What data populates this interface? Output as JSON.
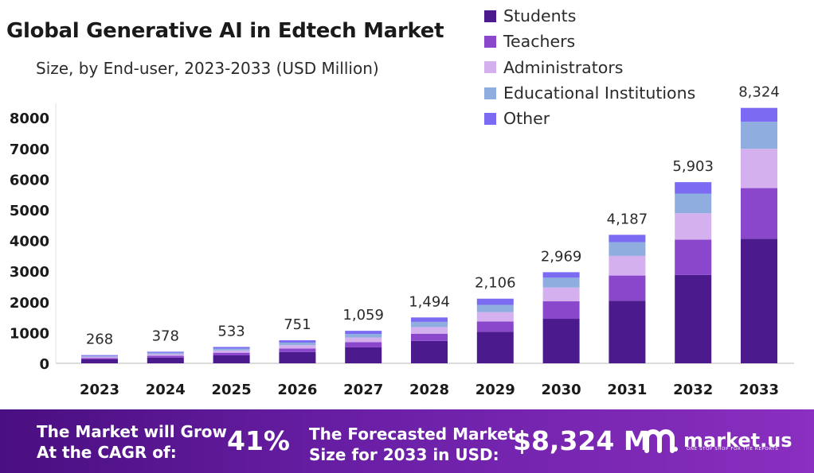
{
  "chart_data": {
    "type": "bar",
    "stacked": true,
    "title": "Global Generative AI in Edtech Market",
    "subtitle": "Size, by End-user, 2023-2033 (USD Million)",
    "categories": [
      "2023",
      "2024",
      "2025",
      "2026",
      "2027",
      "2028",
      "2029",
      "2030",
      "2031",
      "2032",
      "2033"
    ],
    "totals": [
      268,
      378,
      533,
      751,
      1059,
      1494,
      2106,
      2969,
      4187,
      5903,
      8324
    ],
    "total_labels": [
      "268",
      "378",
      "533",
      "751",
      "1,059",
      "1,494",
      "2,106",
      "2,969",
      "4,187",
      "5,903",
      "8,324"
    ],
    "series": [
      {
        "name": "Students",
        "color": "#4b1a8c",
        "values": [
          130,
          185,
          260,
          365,
          520,
          730,
          1030,
          1450,
          2040,
          2880,
          4060
        ]
      },
      {
        "name": "Teachers",
        "color": "#8a47cc",
        "values": [
          42,
          60,
          85,
          120,
          168,
          235,
          330,
          570,
          820,
          1150,
          1650
        ]
      },
      {
        "name": "Administrators",
        "color": "#d5b0ef",
        "values": [
          38,
          55,
          75,
          105,
          150,
          215,
          305,
          450,
          640,
          860,
          1280
        ]
      },
      {
        "name": "Educational Institutions",
        "color": "#8faedf",
        "values": [
          30,
          42,
          60,
          85,
          120,
          170,
          240,
          320,
          450,
          640,
          880
        ]
      },
      {
        "name": "Other",
        "color": "#7a6bf2",
        "values": [
          28,
          36,
          53,
          76,
          101,
          144,
          201,
          179,
          237,
          373,
          454
        ]
      }
    ],
    "yticks": [
      "0",
      "1000",
      "2000",
      "3000",
      "4000",
      "5000",
      "6000",
      "7000",
      "8000"
    ],
    "ylim": [
      0,
      8400
    ],
    "grid": false,
    "legend_position": "top-right"
  },
  "footer": {
    "cagr_label_line1": "The Market will Grow",
    "cagr_label_line2": "At the CAGR of:",
    "cagr_value": "41%",
    "forecast_label_line1": "The Forecasted Market",
    "forecast_label_line2": "Size for 2033 in USD:",
    "forecast_value": "$8,324 M",
    "logo_name": "market.us",
    "logo_tagline": "ONE STOP SHOP FOR THE REPORTS"
  }
}
